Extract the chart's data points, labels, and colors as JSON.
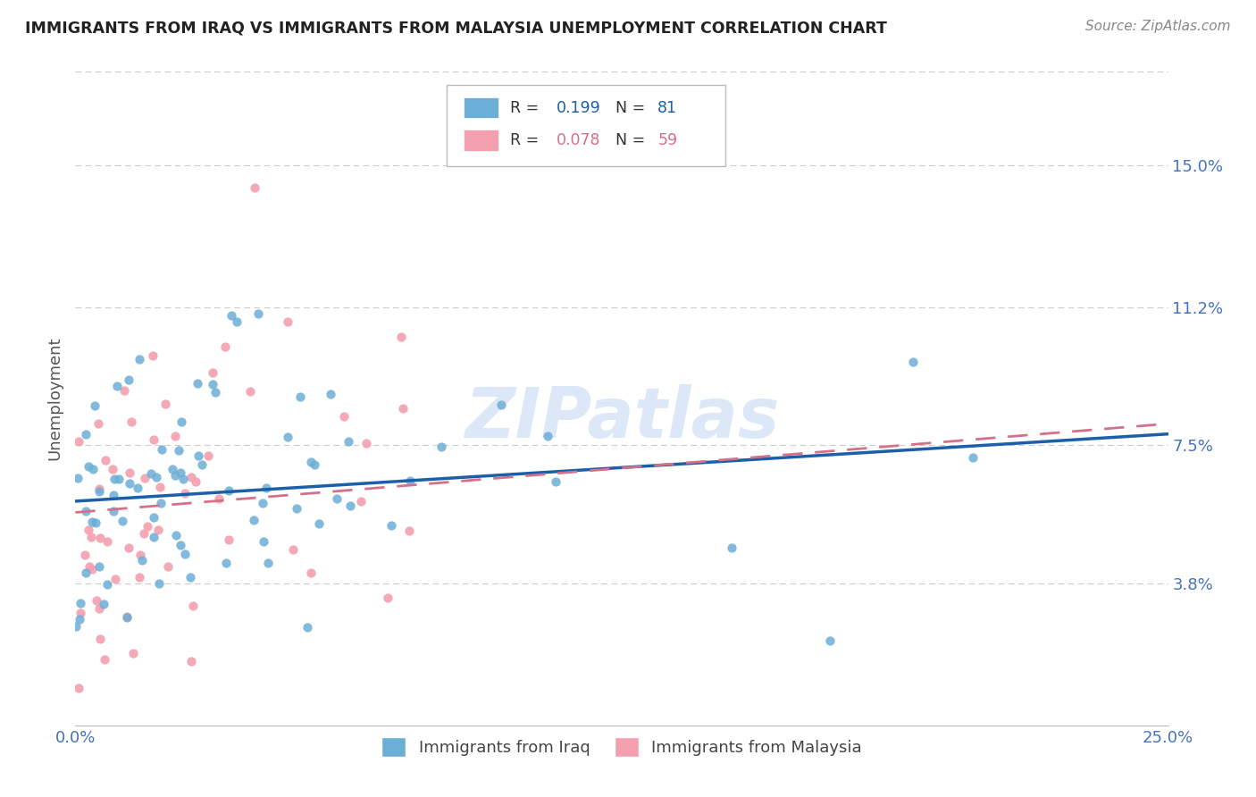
{
  "title": "IMMIGRANTS FROM IRAQ VS IMMIGRANTS FROM MALAYSIA UNEMPLOYMENT CORRELATION CHART",
  "source_text": "Source: ZipAtlas.com",
  "ylabel": "Unemployment",
  "xlim": [
    0.0,
    0.25
  ],
  "ylim": [
    0.0,
    0.175
  ],
  "yticks": [
    0.038,
    0.075,
    0.112,
    0.15
  ],
  "ytick_labels": [
    "3.8%",
    "7.5%",
    "11.2%",
    "15.0%"
  ],
  "xticks": [
    0.0,
    0.05,
    0.1,
    0.15,
    0.2,
    0.25
  ],
  "xtick_labels": [
    "0.0%",
    "",
    "",
    "",
    "",
    "25.0%"
  ],
  "iraq_color": "#6baed6",
  "malaysia_color": "#f4a0b0",
  "iraq_line_color": "#1a5fa8",
  "malaysia_line_color": "#d4708a",
  "iraq_R": 0.199,
  "iraq_N": 81,
  "malaysia_R": 0.078,
  "malaysia_N": 59,
  "watermark": "ZIPatlas",
  "watermark_color": "#dce8f8",
  "background_color": "#ffffff",
  "grid_color": "#cccccc",
  "title_color": "#222222",
  "axis_label_color": "#4472c4",
  "iraq_line_intercept": 0.06,
  "iraq_line_slope": 0.072,
  "malaysia_line_intercept": 0.057,
  "malaysia_line_slope": 0.095
}
